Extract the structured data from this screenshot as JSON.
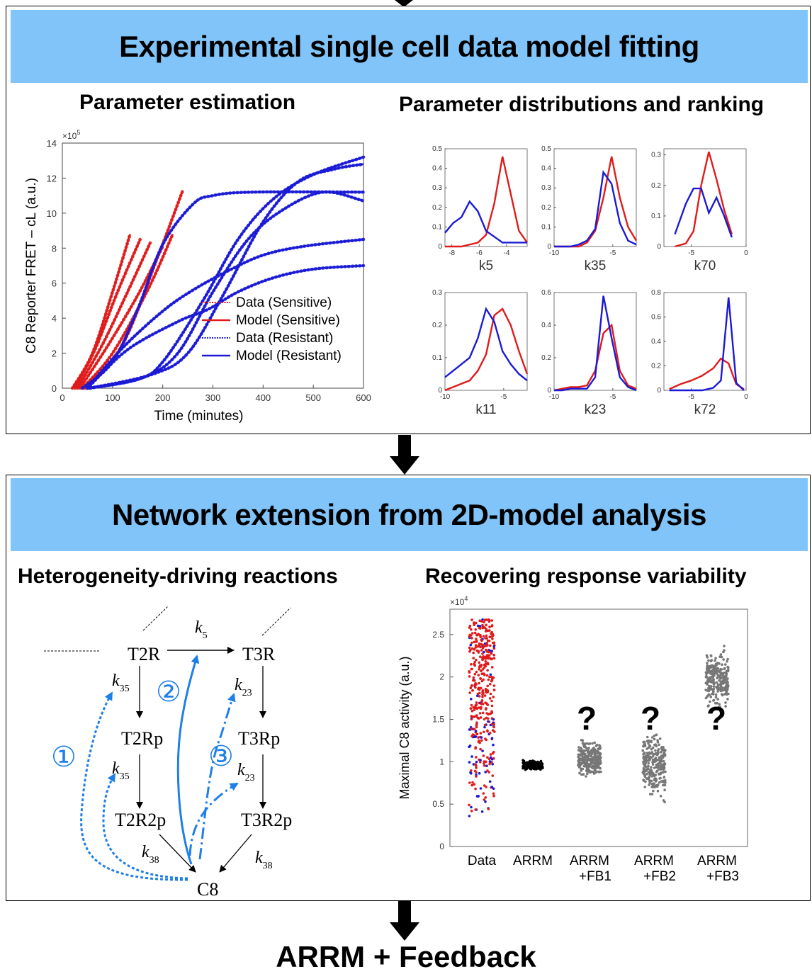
{
  "panel1": {
    "banner": "Experimental single cell data model fitting",
    "left_title": "Parameter estimation",
    "right_title": "Parameter distributions and ranking"
  },
  "panel2": {
    "banner": "Network extension from 2D-model analysis",
    "left_title": "Heterogeneity-driving reactions",
    "right_title": "Recovering response variability"
  },
  "footer": "ARRM + Feedback",
  "colors": {
    "banner": "#80c4fa",
    "sensitive": "#e01b1b",
    "resistant": "#1a1ad6",
    "annotation": "#1f7fe8",
    "gray_points": "#777777"
  },
  "chart_data": [
    {
      "type": "line",
      "id": "fret",
      "title": "",
      "xlabel": "Time (minutes)",
      "ylabel": "C8 Reporter FRET – cL (a.u.)",
      "y_multiplier": "×10",
      "y_multiplier_exp": "5",
      "xlim": [
        0,
        600
      ],
      "ylim": [
        0,
        14
      ],
      "xticks": [
        0,
        100,
        200,
        300,
        400,
        500,
        600
      ],
      "yticks": [
        0,
        2,
        4,
        6,
        8,
        10,
        12,
        14
      ],
      "legend": {
        "position": "bottom-right",
        "entries": [
          "Data (Sensitive)",
          "Model (Sensitive)",
          "Data (Resistant)",
          "Model (Resistant)"
        ]
      },
      "series": [
        {
          "group": "sensitive",
          "x": [
            20,
            60,
            100,
            135
          ],
          "y": [
            0,
            2,
            5.5,
            8.8
          ]
        },
        {
          "group": "sensitive",
          "x": [
            25,
            65,
            110,
            155
          ],
          "y": [
            0,
            2.2,
            5.5,
            8.5
          ]
        },
        {
          "group": "sensitive",
          "x": [
            30,
            80,
            130,
            175
          ],
          "y": [
            0,
            2.5,
            5.5,
            8.3
          ]
        },
        {
          "group": "sensitive",
          "x": [
            35,
            90,
            150,
            200
          ],
          "y": [
            0,
            2.4,
            5.3,
            8.1
          ]
        },
        {
          "group": "sensitive",
          "x": [
            40,
            100,
            170,
            220
          ],
          "y": [
            0,
            2.0,
            5.6,
            8.8
          ]
        },
        {
          "group": "sensitive",
          "x": [
            45,
            120,
            190,
            240
          ],
          "y": [
            0,
            2.5,
            7.5,
            11.3
          ]
        },
        {
          "group": "resistant",
          "x": [
            40,
            100,
            150,
            200,
            260,
            300,
            380,
            600
          ],
          "y": [
            0,
            1.5,
            4.5,
            8.2,
            10.5,
            11.0,
            11.2,
            11.2
          ]
        },
        {
          "group": "resistant",
          "x": [
            50,
            120,
            200,
            260,
            330,
            400,
            480,
            600
          ],
          "y": [
            0,
            2.3,
            4.4,
            5.6,
            6.7,
            7.6,
            8.1,
            8.5
          ]
        },
        {
          "group": "resistant",
          "x": [
            50,
            130,
            230,
            290,
            350,
            420,
            500,
            600
          ],
          "y": [
            0,
            2.2,
            3.8,
            4.5,
            5.5,
            6.3,
            6.8,
            7.0
          ]
        },
        {
          "group": "resistant",
          "x": [
            50,
            150,
            200,
            280,
            350,
            420,
            500,
            600
          ],
          "y": [
            0,
            0.5,
            1.5,
            5.0,
            8.5,
            10.8,
            12.2,
            13.2
          ]
        },
        {
          "group": "resistant",
          "x": [
            55,
            160,
            230,
            300,
            370,
            440,
            520,
            600
          ],
          "y": [
            0,
            0.6,
            2.0,
            5.5,
            8.5,
            10.2,
            11.2,
            10.7
          ]
        },
        {
          "group": "resistant",
          "x": [
            55,
            180,
            250,
            320,
            400,
            470,
            540,
            600
          ],
          "y": [
            0,
            0.8,
            2.0,
            5.3,
            9.5,
            11.8,
            12.5,
            12.8
          ]
        }
      ]
    },
    {
      "type": "line",
      "id": "distributions",
      "panels": [
        {
          "label": "k5",
          "xlim": [
            -8.5,
            -2.5
          ],
          "ylim": [
            0,
            0.5
          ],
          "xticks": [
            -8,
            -6,
            -4
          ],
          "xticklabels": [
            "-8",
            "-6",
            "-4"
          ],
          "yticks": [
            0,
            0.1,
            0.2,
            0.3,
            0.4,
            0.5
          ],
          "yticklabels": [
            "0",
            "0.1",
            "0.2",
            "0.3",
            "0.4",
            "0.5"
          ],
          "x": [
            -8.5,
            -7.9,
            -7.3,
            -6.7,
            -6.1,
            -5.5,
            -4.9,
            -4.3,
            -3.7,
            -3.1,
            -2.5
          ],
          "sensitive": [
            0,
            0,
            0,
            0.01,
            0.02,
            0.06,
            0.22,
            0.46,
            0.27,
            0.08,
            0.02
          ],
          "resistant": [
            0.07,
            0.12,
            0.15,
            0.23,
            0.18,
            0.08,
            0.05,
            0.02,
            0.02,
            0.02,
            0.02
          ]
        },
        {
          "label": "k35",
          "xlim": [
            -10,
            -3
          ],
          "ylim": [
            0,
            0.5
          ],
          "xticks": [
            -10,
            -5
          ],
          "xticklabels": [
            "-10",
            "-5"
          ],
          "yticks": [
            0,
            0.1,
            0.2,
            0.3,
            0.4,
            0.5
          ],
          "yticklabels": [
            "0",
            "0.1",
            "0.2",
            "0.3",
            "0.4",
            "0.5"
          ],
          "x": [
            -10,
            -9.3,
            -8.6,
            -7.9,
            -7.2,
            -6.5,
            -5.8,
            -5.1,
            -4.4,
            -3.7,
            -3.0
          ],
          "sensitive": [
            0,
            0,
            0,
            0,
            0.02,
            0.08,
            0.25,
            0.46,
            0.25,
            0.1,
            0.03
          ],
          "resistant": [
            0,
            0,
            0,
            0.01,
            0.03,
            0.09,
            0.38,
            0.32,
            0.12,
            0.03,
            0.01
          ]
        },
        {
          "label": "k70",
          "xlim": [
            -7.5,
            0
          ],
          "ylim": [
            0,
            0.32
          ],
          "xticks": [
            -5,
            0
          ],
          "xticklabels": [
            "-5",
            "0"
          ],
          "yticks": [
            0,
            0.1,
            0.2,
            0.3
          ],
          "yticklabels": [
            "0",
            "0.1",
            "0.2",
            "0.3"
          ],
          "x": [
            -6.5,
            -5.5,
            -4.8,
            -4.1,
            -3.4,
            -2.7,
            -2.0,
            -1.3
          ],
          "sensitive": [
            0,
            0.01,
            0.05,
            0.2,
            0.31,
            0.22,
            0.12,
            0.04
          ],
          "resistant": [
            0.04,
            0.14,
            0.19,
            0.19,
            0.11,
            0.16,
            0.1,
            0.03
          ]
        },
        {
          "label": "k11",
          "xlim": [
            -10,
            -3
          ],
          "ylim": [
            0,
            0.3
          ],
          "xticks": [
            -10,
            -5
          ],
          "xticklabels": [
            "-10",
            "-5"
          ],
          "yticks": [
            0,
            0.1,
            0.2,
            0.3
          ],
          "yticklabels": [
            "0",
            "0.1",
            "0.2",
            "0.3"
          ],
          "x": [
            -10,
            -9.3,
            -8.6,
            -7.9,
            -7.2,
            -6.5,
            -5.8,
            -5.1,
            -4.4,
            -3.7,
            -3.0
          ],
          "sensitive": [
            0,
            0.01,
            0.02,
            0.03,
            0.06,
            0.11,
            0.23,
            0.25,
            0.2,
            0.12,
            0.05
          ],
          "resistant": [
            0.04,
            0.06,
            0.08,
            0.1,
            0.16,
            0.25,
            0.21,
            0.12,
            0.08,
            0.05,
            0.03
          ]
        },
        {
          "label": "k23",
          "xlim": [
            -10,
            -3
          ],
          "ylim": [
            0,
            0.6
          ],
          "xticks": [
            -10,
            -5
          ],
          "xticklabels": [
            "-10",
            "-5"
          ],
          "yticks": [
            0,
            0.2,
            0.4,
            0.6
          ],
          "yticklabels": [
            "0",
            "0.2",
            "0.4",
            "0.6"
          ],
          "x": [
            -10,
            -9.3,
            -8.6,
            -7.9,
            -7.2,
            -6.5,
            -5.8,
            -5.1,
            -4.4,
            -3.7,
            -3.0
          ],
          "sensitive": [
            0,
            0.01,
            0.02,
            0.02,
            0.03,
            0.12,
            0.35,
            0.4,
            0.12,
            0.03,
            0.01
          ],
          "resistant": [
            0,
            0,
            0.01,
            0.01,
            0.01,
            0.08,
            0.58,
            0.32,
            0.08,
            0.02,
            0
          ]
        },
        {
          "label": "k72",
          "xlim": [
            -7.5,
            0
          ],
          "ylim": [
            0,
            0.8
          ],
          "xticks": [
            -5,
            0
          ],
          "xticklabels": [
            "-5",
            "0"
          ],
          "yticks": [
            0,
            0.2,
            0.4,
            0.6,
            0.8
          ],
          "yticklabels": [
            "0",
            "0.2",
            "0.4",
            "0.6",
            "0.8"
          ],
          "x": [
            -7.0,
            -6.0,
            -5.0,
            -4.0,
            -3.0,
            -2.3,
            -1.6,
            -0.9,
            -0.2
          ],
          "sensitive": [
            0.01,
            0.05,
            0.08,
            0.12,
            0.18,
            0.26,
            0.22,
            0.05,
            0.01
          ],
          "resistant": [
            0,
            0,
            0,
            0,
            0.02,
            0.08,
            0.76,
            0.06,
            0
          ]
        }
      ]
    },
    {
      "type": "scatter",
      "id": "variability",
      "ylabel": "Maximal C8 activity (a.u.)",
      "y_multiplier": "×10",
      "y_multiplier_exp": "4",
      "ylim": [
        0,
        2.8
      ],
      "yticks": [
        0,
        0.5,
        1,
        1.5,
        2,
        2.5
      ],
      "yticklabels": [
        "0",
        "0.5",
        "1",
        "1.5",
        "2",
        "2.5"
      ],
      "categories": [
        "Data",
        "ARRM",
        "ARRM\n+FB1",
        "ARRM\n+FB2",
        "ARRM\n+FB3"
      ],
      "category_lines": [
        [
          "Data"
        ],
        [
          "ARRM"
        ],
        [
          "ARRM",
          "+FB1"
        ],
        [
          "ARRM",
          "+FB2"
        ],
        [
          "ARRM",
          "+FB3"
        ]
      ],
      "groups": [
        {
          "category": "Data",
          "min": 0.33,
          "max": 2.68,
          "center": 1.8,
          "colors": [
            "sensitive",
            "resistant"
          ]
        },
        {
          "category": "ARRM",
          "min": 0.88,
          "max": 1.03,
          "center": 0.95,
          "colors": [
            "black"
          ]
        },
        {
          "category": "ARRM\n+FB1",
          "min": 0.78,
          "max": 1.3,
          "center": 1.0,
          "colors": [
            "gray"
          ]
        },
        {
          "category": "ARRM\n+FB2",
          "min": 0.44,
          "max": 1.5,
          "center": 0.8,
          "colors": [
            "gray"
          ]
        },
        {
          "category": "ARRM\n+FB3",
          "min": 1.55,
          "max": 2.4,
          "center": 1.95,
          "colors": [
            "gray"
          ]
        }
      ],
      "annotations": [
        "?",
        "?",
        "?"
      ]
    }
  ],
  "network": {
    "nodes": {
      "t2r": "T2R",
      "t3r": "T3R",
      "t2rp": "T2Rp",
      "t3rp": "T3Rp",
      "t2r2p": "T2R2p",
      "t3r2p": "T3R2p",
      "c8": "C8"
    },
    "rates": {
      "k5": {
        "base": "k",
        "sub": "5"
      },
      "k35a": {
        "base": "k",
        "sub": "35"
      },
      "k35b": {
        "base": "k",
        "sub": "35"
      },
      "k23a": {
        "base": "k",
        "sub": "23"
      },
      "k23b": {
        "base": "k",
        "sub": "23"
      },
      "k38a": {
        "base": "k",
        "sub": "38"
      },
      "k38b": {
        "base": "k",
        "sub": "38"
      }
    },
    "feedback_labels": [
      "①",
      "②",
      "③"
    ]
  }
}
